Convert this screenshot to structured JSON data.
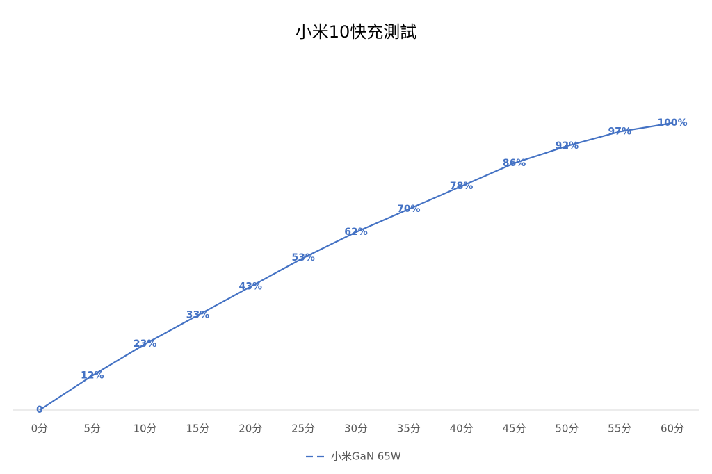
{
  "chart_data": {
    "type": "line",
    "title": "小米10快充測試",
    "categories": [
      "0分",
      "5分",
      "10分",
      "15分",
      "20分",
      "25分",
      "30分",
      "35分",
      "40分",
      "45分",
      "50分",
      "55分",
      "60分"
    ],
    "series": [
      {
        "name": "小米GaN 65W",
        "color": "#4472c4",
        "values": [
          0,
          12,
          23,
          33,
          43,
          53,
          62,
          70,
          78,
          86,
          92,
          97,
          100
        ],
        "value_labels": [
          "0",
          "12%",
          "23%",
          "33%",
          "43%",
          "53%",
          "62%",
          "70%",
          "78%",
          "86%",
          "92%",
          "97%",
          "100%"
        ]
      }
    ],
    "ylim": [
      0,
      100
    ]
  }
}
